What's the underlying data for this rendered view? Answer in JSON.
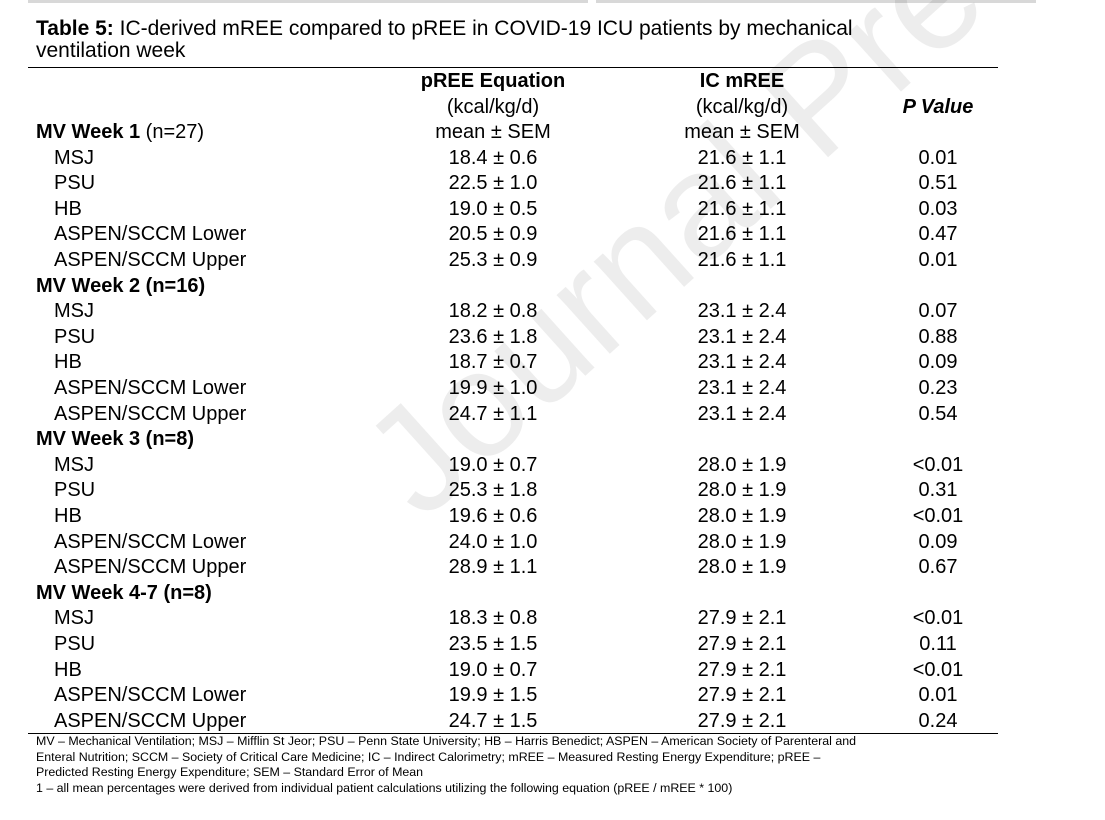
{
  "caption": {
    "label": "Table 5:",
    "text_line1": " IC-derived mREE compared to pREE in COVID-19 ICU patients by mechanical",
    "text_line2": "ventilation week"
  },
  "columns": {
    "pree": {
      "line1": "pREE Equation",
      "line2": "(kcal/kg/d)",
      "line3": "mean ± SEM"
    },
    "ic": {
      "line1": "IC mREE",
      "line2": "(kcal/kg/d)",
      "line3": "mean ± SEM"
    },
    "p": {
      "line1": "P Value"
    }
  },
  "groups": [
    {
      "title": "MV Week 1",
      "n": " (n=27)",
      "rows": [
        {
          "label": "MSJ",
          "pree": "18.4 ± 0.6",
          "ic": "21.6 ± 1.1",
          "p": "0.01"
        },
        {
          "label": "PSU",
          "pree": "22.5 ± 1.0",
          "ic": "21.6 ± 1.1",
          "p": "0.51"
        },
        {
          "label": "HB",
          "pree": "19.0 ± 0.5",
          "ic": "21.6 ± 1.1",
          "p": "0.03"
        },
        {
          "label": "ASPEN/SCCM Lower",
          "pree": "20.5 ± 0.9",
          "ic": "21.6 ± 1.1",
          "p": "0.47"
        },
        {
          "label": "ASPEN/SCCM Upper",
          "pree": "25.3 ± 0.9",
          "ic": "21.6 ± 1.1",
          "p": "0.01"
        }
      ]
    },
    {
      "title": "MV Week 2 (n=16)",
      "n": "",
      "rows": [
        {
          "label": "MSJ",
          "pree": "18.2 ± 0.8",
          "ic": "23.1 ± 2.4",
          "p": "0.07"
        },
        {
          "label": "PSU",
          "pree": "23.6 ± 1.8",
          "ic": "23.1 ± 2.4",
          "p": "0.88"
        },
        {
          "label": "HB",
          "pree": "18.7 ± 0.7",
          "ic": "23.1 ± 2.4",
          "p": "0.09"
        },
        {
          "label": "ASPEN/SCCM Lower",
          "pree": "19.9 ± 1.0",
          "ic": "23.1 ± 2.4",
          "p": "0.23"
        },
        {
          "label": "ASPEN/SCCM Upper",
          "pree": "24.7 ± 1.1",
          "ic": "23.1 ± 2.4",
          "p": "0.54"
        }
      ]
    },
    {
      "title": "MV Week 3 (n=8)",
      "n": "",
      "rows": [
        {
          "label": "MSJ",
          "pree": "19.0 ± 0.7",
          "ic": "28.0 ± 1.9",
          "p": "<0.01"
        },
        {
          "label": "PSU",
          "pree": "25.3 ± 1.8",
          "ic": "28.0 ± 1.9",
          "p": "0.31"
        },
        {
          "label": "HB",
          "pree": "19.6 ± 0.6",
          "ic": "28.0 ± 1.9",
          "p": "<0.01"
        },
        {
          "label": "ASPEN/SCCM Lower",
          "pree": "24.0 ± 1.0",
          "ic": "28.0 ± 1.9",
          "p": "0.09"
        },
        {
          "label": "ASPEN/SCCM Upper",
          "pree": "28.9 ± 1.1",
          "ic": "28.0 ± 1.9",
          "p": "0.67"
        }
      ]
    },
    {
      "title": "MV Week 4-7 (n=8)",
      "n": "",
      "rows": [
        {
          "label": "MSJ",
          "pree": "18.3 ± 0.8",
          "ic": "27.9 ± 2.1",
          "p": "<0.01"
        },
        {
          "label": "PSU",
          "pree": "23.5 ± 1.5",
          "ic": "27.9 ± 2.1",
          "p": "0.11"
        },
        {
          "label": "HB",
          "pree": "19.0 ± 0.7",
          "ic": "27.9 ± 2.1",
          "p": "<0.01"
        },
        {
          "label": "ASPEN/SCCM Lower",
          "pree": "19.9 ± 1.5",
          "ic": "27.9 ± 2.1",
          "p": "0.01"
        },
        {
          "label": "ASPEN/SCCM Upper",
          "pree": "24.7 ± 1.5",
          "ic": "27.9 ± 2.1",
          "p": "0.24"
        }
      ]
    }
  ],
  "footnotes": {
    "line1": "MV – Mechanical Ventilation; MSJ – Mifflin St Jeor; PSU – Penn State University; HB – Harris Benedict; ASPEN – American Society of Parenteral and",
    "line2": "Enteral Nutrition; SCCM – Society of Critical Care Medicine; IC – Indirect Calorimetry; mREE – Measured Resting Energy Expenditure; pREE –",
    "line3": "Predicted Resting Energy Expenditure; SEM – Standard Error of Mean",
    "line4": "1 – all mean percentages were derived from individual patient calculations utilizing the following equation (pREE / mREE * 100)"
  },
  "watermark": "Journal Pre-proof"
}
